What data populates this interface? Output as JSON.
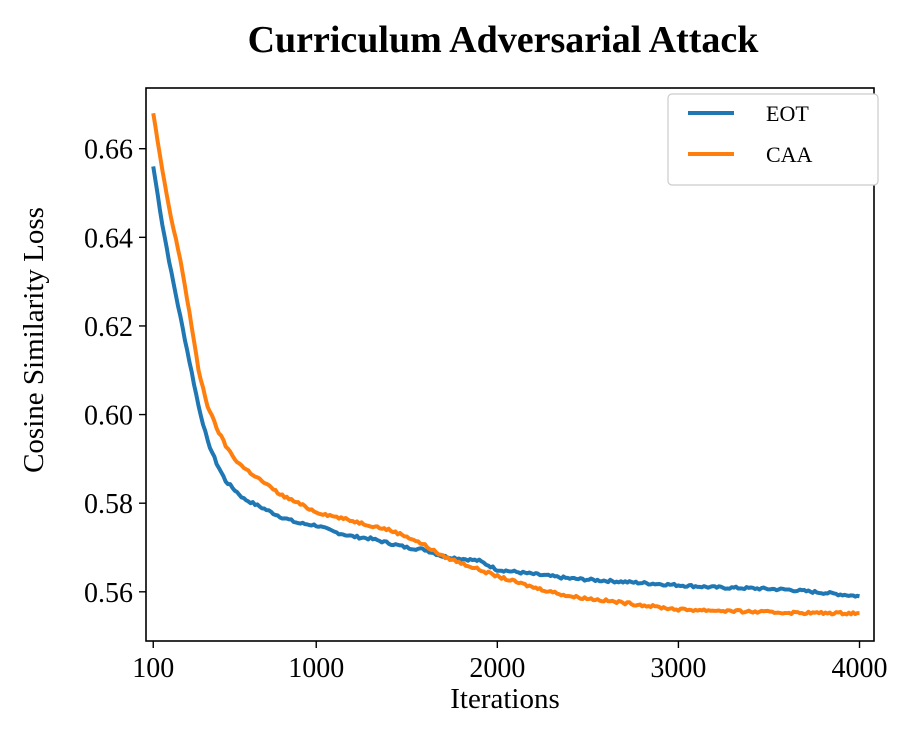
{
  "chart_data": {
    "type": "line",
    "title": "Curriculum Adversarial Attack",
    "xlabel": "Iterations",
    "ylabel": "Cosine Similarity Loss",
    "xlim": [
      60,
      4080
    ],
    "ylim": [
      0.5489,
      0.6737
    ],
    "xticks": [
      100,
      1000,
      2000,
      3000,
      4000
    ],
    "xtick_labels": [
      "100",
      "1000",
      "2000",
      "3000",
      "4000"
    ],
    "yticks": [
      0.56,
      0.58,
      0.6,
      0.62,
      0.64,
      0.66
    ],
    "ytick_labels": [
      "0.56",
      "0.58",
      "0.60",
      "0.62",
      "0.64",
      "0.66"
    ],
    "grid": false,
    "legend_position": "top-right",
    "series": [
      {
        "name": "EOT",
        "color": "#1f77b4",
        "x": [
          100,
          150,
          200,
          250,
          300,
          350,
          400,
          450,
          500,
          550,
          600,
          700,
          800,
          900,
          1000,
          1100,
          1200,
          1300,
          1400,
          1500,
          1600,
          1700,
          1800,
          1900,
          2000,
          2200,
          2400,
          2600,
          2800,
          3000,
          3200,
          3400,
          3600,
          3800,
          4000
        ],
        "y": [
          0.656,
          0.643,
          0.632,
          0.622,
          0.612,
          0.602,
          0.594,
          0.589,
          0.585,
          0.583,
          0.581,
          0.579,
          0.577,
          0.5755,
          0.575,
          0.5735,
          0.5725,
          0.572,
          0.571,
          0.57,
          0.5695,
          0.568,
          0.5675,
          0.567,
          0.565,
          0.564,
          0.563,
          0.5625,
          0.562,
          0.5615,
          0.561,
          0.5608,
          0.5605,
          0.5598,
          0.559
        ]
      },
      {
        "name": "CAA",
        "color": "#ff7f0e",
        "x": [
          100,
          150,
          200,
          250,
          300,
          350,
          400,
          450,
          500,
          550,
          600,
          700,
          800,
          900,
          1000,
          1100,
          1200,
          1300,
          1400,
          1500,
          1600,
          1700,
          1800,
          1900,
          2000,
          2200,
          2400,
          2600,
          2800,
          3000,
          3200,
          3400,
          3600,
          3800,
          4000
        ],
        "y": [
          0.668,
          0.655,
          0.644,
          0.635,
          0.623,
          0.61,
          0.602,
          0.597,
          0.593,
          0.59,
          0.588,
          0.585,
          0.582,
          0.58,
          0.578,
          0.577,
          0.576,
          0.575,
          0.574,
          0.5725,
          0.5705,
          0.568,
          0.5665,
          0.565,
          0.5635,
          0.561,
          0.559,
          0.558,
          0.557,
          0.556,
          0.5558,
          0.5555,
          0.5553,
          0.5552,
          0.5552
        ]
      }
    ]
  }
}
